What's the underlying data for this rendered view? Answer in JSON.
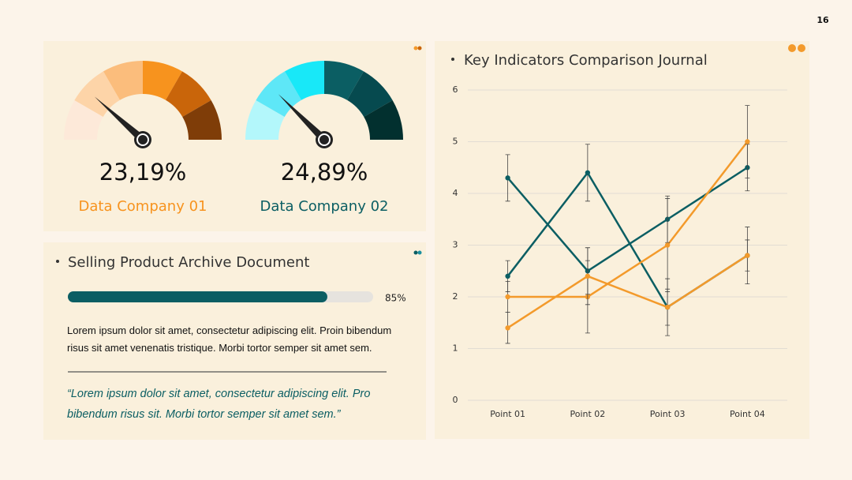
{
  "page_number": "16",
  "body_text": "Lorem ipsum dolor sit amet, consectetur adipiscing elit. Proin bibendum risus sit amet venenatis tristique. Morbi tortor semper sit amet sem.",
  "quote": "“Lorem ipsum dolor sit amet, consectetur adipiscing elit. Pro bibendum risus sit. Morbi tortor semper sit amet sem.”",
  "chart_data": [
    {
      "type": "gauge",
      "title": "Data Company 01",
      "values": [
        23.19
      ],
      "value_labels": [
        "23,19%"
      ],
      "ylim": [
        0,
        100
      ],
      "color": "#f7931e",
      "colors": [
        "#fde9d9",
        "#fdd4a8",
        "#fbbd7c",
        "#f7931e",
        "#c9650a",
        "#7f3d08"
      ]
    },
    {
      "type": "gauge",
      "title": "Data Company 02",
      "values": [
        24.89
      ],
      "value_labels": [
        "24,89%"
      ],
      "ylim": [
        0,
        100
      ],
      "color": "#0b5e63",
      "colors": [
        "#b3f7fb",
        "#5ee7f7",
        "#18e8f8",
        "#0b5e63",
        "#064a4f",
        "#02302f"
      ]
    },
    {
      "type": "progress",
      "title": "Selling Product Archive Document",
      "values": [
        85
      ],
      "value_labels": [
        "85%"
      ],
      "ylim": [
        0,
        100
      ],
      "color": "#0b5e63"
    },
    {
      "type": "line",
      "title": "Key Indicators Comparison Journal",
      "categories": [
        "Point 01",
        "Point 02",
        "Point 03",
        "Point 04"
      ],
      "ylim": [
        0,
        6
      ],
      "yticks": [
        0,
        1,
        2,
        3,
        4,
        5,
        6
      ],
      "grid": true,
      "series": [
        {
          "color": "#0b5e63",
          "values": [
            4.3,
            2.5,
            3.5,
            4.5
          ],
          "errors": [
            0.45,
            0.45,
            0.45,
            0.45
          ]
        },
        {
          "color": "#0b5e63",
          "values": [
            2.4,
            4.4,
            1.8,
            2.8
          ],
          "errors": [
            0.3,
            0.55,
            0.35,
            0.3
          ]
        },
        {
          "color": "#f39a2b",
          "values": [
            2.0,
            2.0,
            3.0,
            5.0
          ],
          "errors": [
            0.3,
            0.7,
            0.9,
            0.7
          ]
        },
        {
          "color": "#f39a2b",
          "values": [
            1.4,
            2.4,
            1.8,
            2.8
          ],
          "errors": [
            0.3,
            0.55,
            0.55,
            0.55
          ]
        }
      ]
    }
  ]
}
